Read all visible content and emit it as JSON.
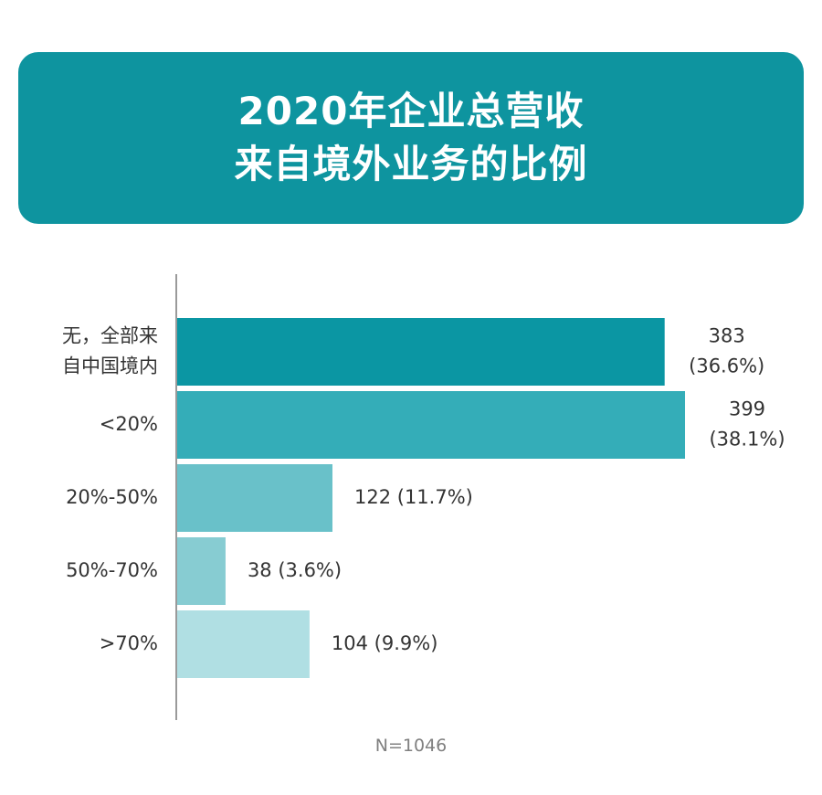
{
  "title": {
    "line1": "2020年企业总营收",
    "line2": "来自境外业务的比例"
  },
  "colors": {
    "banner": "#0e949f",
    "axis": "#9a9a9a",
    "text": "#333333",
    "note": "#808080"
  },
  "chart_data": {
    "type": "bar",
    "orientation": "horizontal",
    "categories": [
      [
        "无，全部来",
        "自中国境内"
      ],
      [
        "<20%"
      ],
      [
        "20%-50%"
      ],
      [
        "50%-70%"
      ],
      [
        ">70%"
      ]
    ],
    "values": [
      383,
      399,
      122,
      38,
      104
    ],
    "percentages": [
      "36.6%",
      "38.1%",
      "11.7%",
      "3.6%",
      "9.9%"
    ],
    "value_labels": [
      [
        "383",
        "(36.6%)"
      ],
      [
        "399",
        "(38.1%)"
      ],
      [
        "122 (11.7%)"
      ],
      [
        "38 (3.6%)"
      ],
      [
        "104 (9.9%)"
      ]
    ],
    "bar_colors": [
      "#0b96a3",
      "#34adb8",
      "#69c1c9",
      "#87ccd2",
      "#b0dfe3"
    ],
    "xlim": [
      0,
      399
    ],
    "grid": false,
    "note": "N=1046"
  }
}
